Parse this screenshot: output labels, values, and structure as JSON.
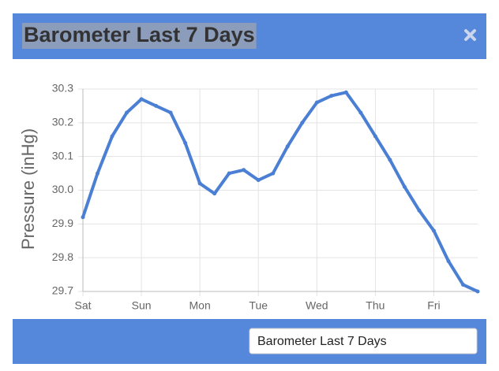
{
  "header": {
    "title": "Barometer Last 7 Days"
  },
  "chart_data": {
    "type": "line",
    "y_label": "Pressure (inHg)",
    "x": [
      0,
      0.25,
      0.5,
      0.75,
      1,
      1.25,
      1.5,
      1.75,
      2,
      2.25,
      2.5,
      2.75,
      3,
      3.25,
      3.5,
      3.75,
      4,
      4.25,
      4.5,
      4.75,
      5,
      5.25,
      5.5,
      5.75,
      6,
      6.25,
      6.5,
      6.75
    ],
    "series": [
      {
        "name": "Pressure",
        "color": "#4a7fd4",
        "values": [
          29.92,
          30.05,
          30.16,
          30.23,
          30.27,
          30.25,
          30.23,
          30.14,
          30.02,
          29.99,
          30.05,
          30.06,
          30.03,
          30.05,
          30.13,
          30.2,
          30.26,
          30.28,
          30.29,
          30.23,
          30.16,
          30.09,
          30.01,
          29.94,
          29.88,
          29.79,
          29.72,
          29.7
        ]
      }
    ],
    "xlim": [
      0,
      6.75
    ],
    "xticks": [
      {
        "value": 0,
        "label": "Sat"
      },
      {
        "value": 1,
        "label": "Sun"
      },
      {
        "value": 2,
        "label": "Mon"
      },
      {
        "value": 3,
        "label": "Tue"
      },
      {
        "value": 4,
        "label": "Wed"
      },
      {
        "value": 5,
        "label": "Thu"
      },
      {
        "value": 6,
        "label": "Fri"
      }
    ],
    "ylim": [
      29.7,
      30.3
    ],
    "yticks": [
      29.7,
      29.8,
      29.9,
      {
        "value": 30,
        "label": "30.0"
      },
      30.1,
      30.2,
      30.3
    ],
    "grid": true
  },
  "footer": {
    "select": "Barometer Last 7 Days"
  }
}
